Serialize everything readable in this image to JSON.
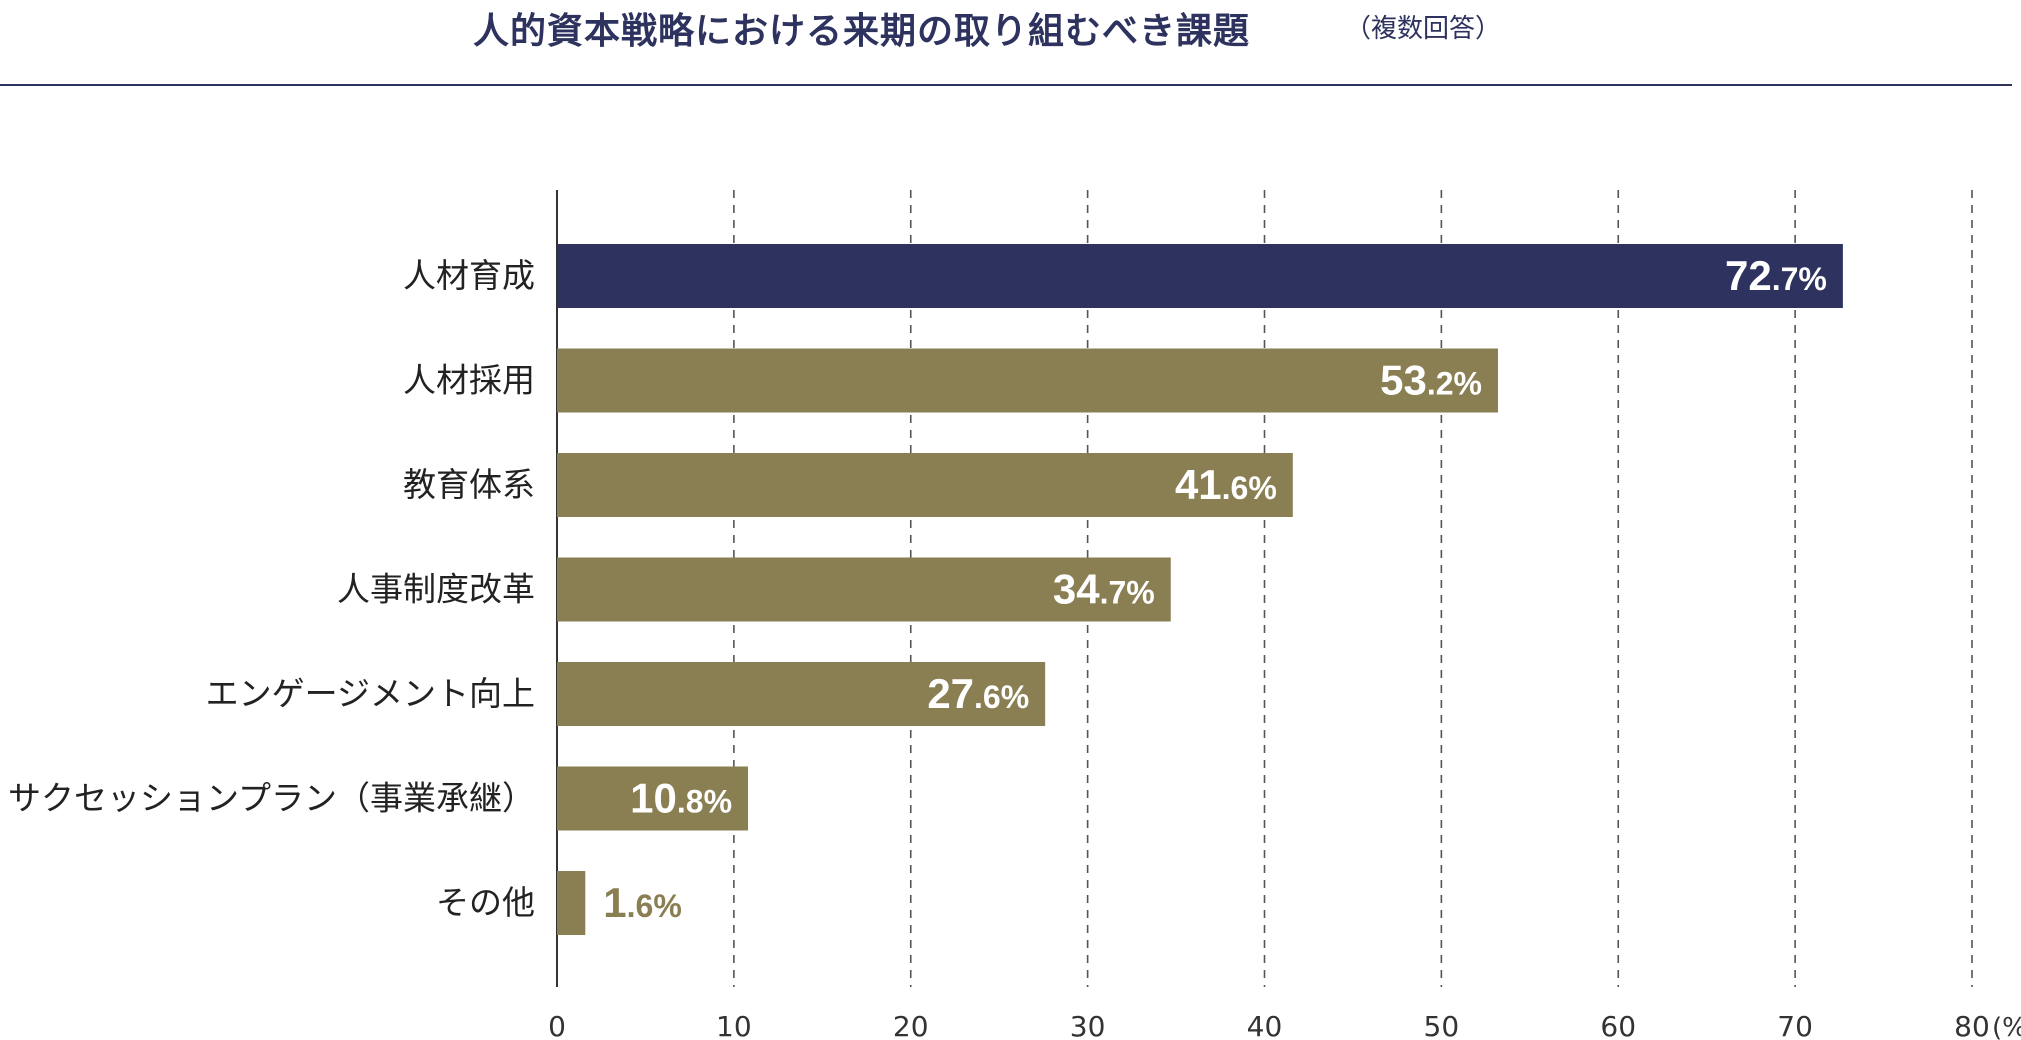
{
  "title": {
    "main": "人的資本戦略における来期の取り組むべき課題",
    "sub": "（複数回答）"
  },
  "colors": {
    "title": "#2d325e",
    "highlight_bar": "#2d325e",
    "bar": "#8a7f52",
    "axis": "#333333",
    "grid": "#555555",
    "label_inside": "#ffffff",
    "label_outside": "#8a7f52"
  },
  "chart_data": {
    "type": "bar",
    "orientation": "horizontal",
    "title": "人的資本戦略における来期の取り組むべき課題",
    "subtitle": "（複数回答）",
    "xlabel": "",
    "ylabel": "",
    "xlim": [
      0,
      80
    ],
    "xticks": [
      "0",
      "10",
      "20",
      "30",
      "40",
      "50",
      "60",
      "70",
      "80"
    ],
    "unit_label": "(%)",
    "grid": true,
    "categories": [
      "人材育成",
      "人材採用",
      "教育体系",
      "人事制度改革",
      "エンゲージメント向上",
      "サクセッションプラン（事業承継）",
      "その他"
    ],
    "values": [
      72.7,
      53.2,
      41.6,
      34.7,
      27.6,
      10.8,
      1.6
    ],
    "value_labels": [
      {
        "int": "72",
        "dec": ".7%"
      },
      {
        "int": "53",
        "dec": ".2%"
      },
      {
        "int": "41",
        "dec": ".6%"
      },
      {
        "int": "34",
        "dec": ".7%"
      },
      {
        "int": "27",
        "dec": ".6%"
      },
      {
        "int": "10",
        "dec": ".8%"
      },
      {
        "int": "1",
        "dec": ".6%"
      }
    ],
    "highlight_index": 0
  }
}
